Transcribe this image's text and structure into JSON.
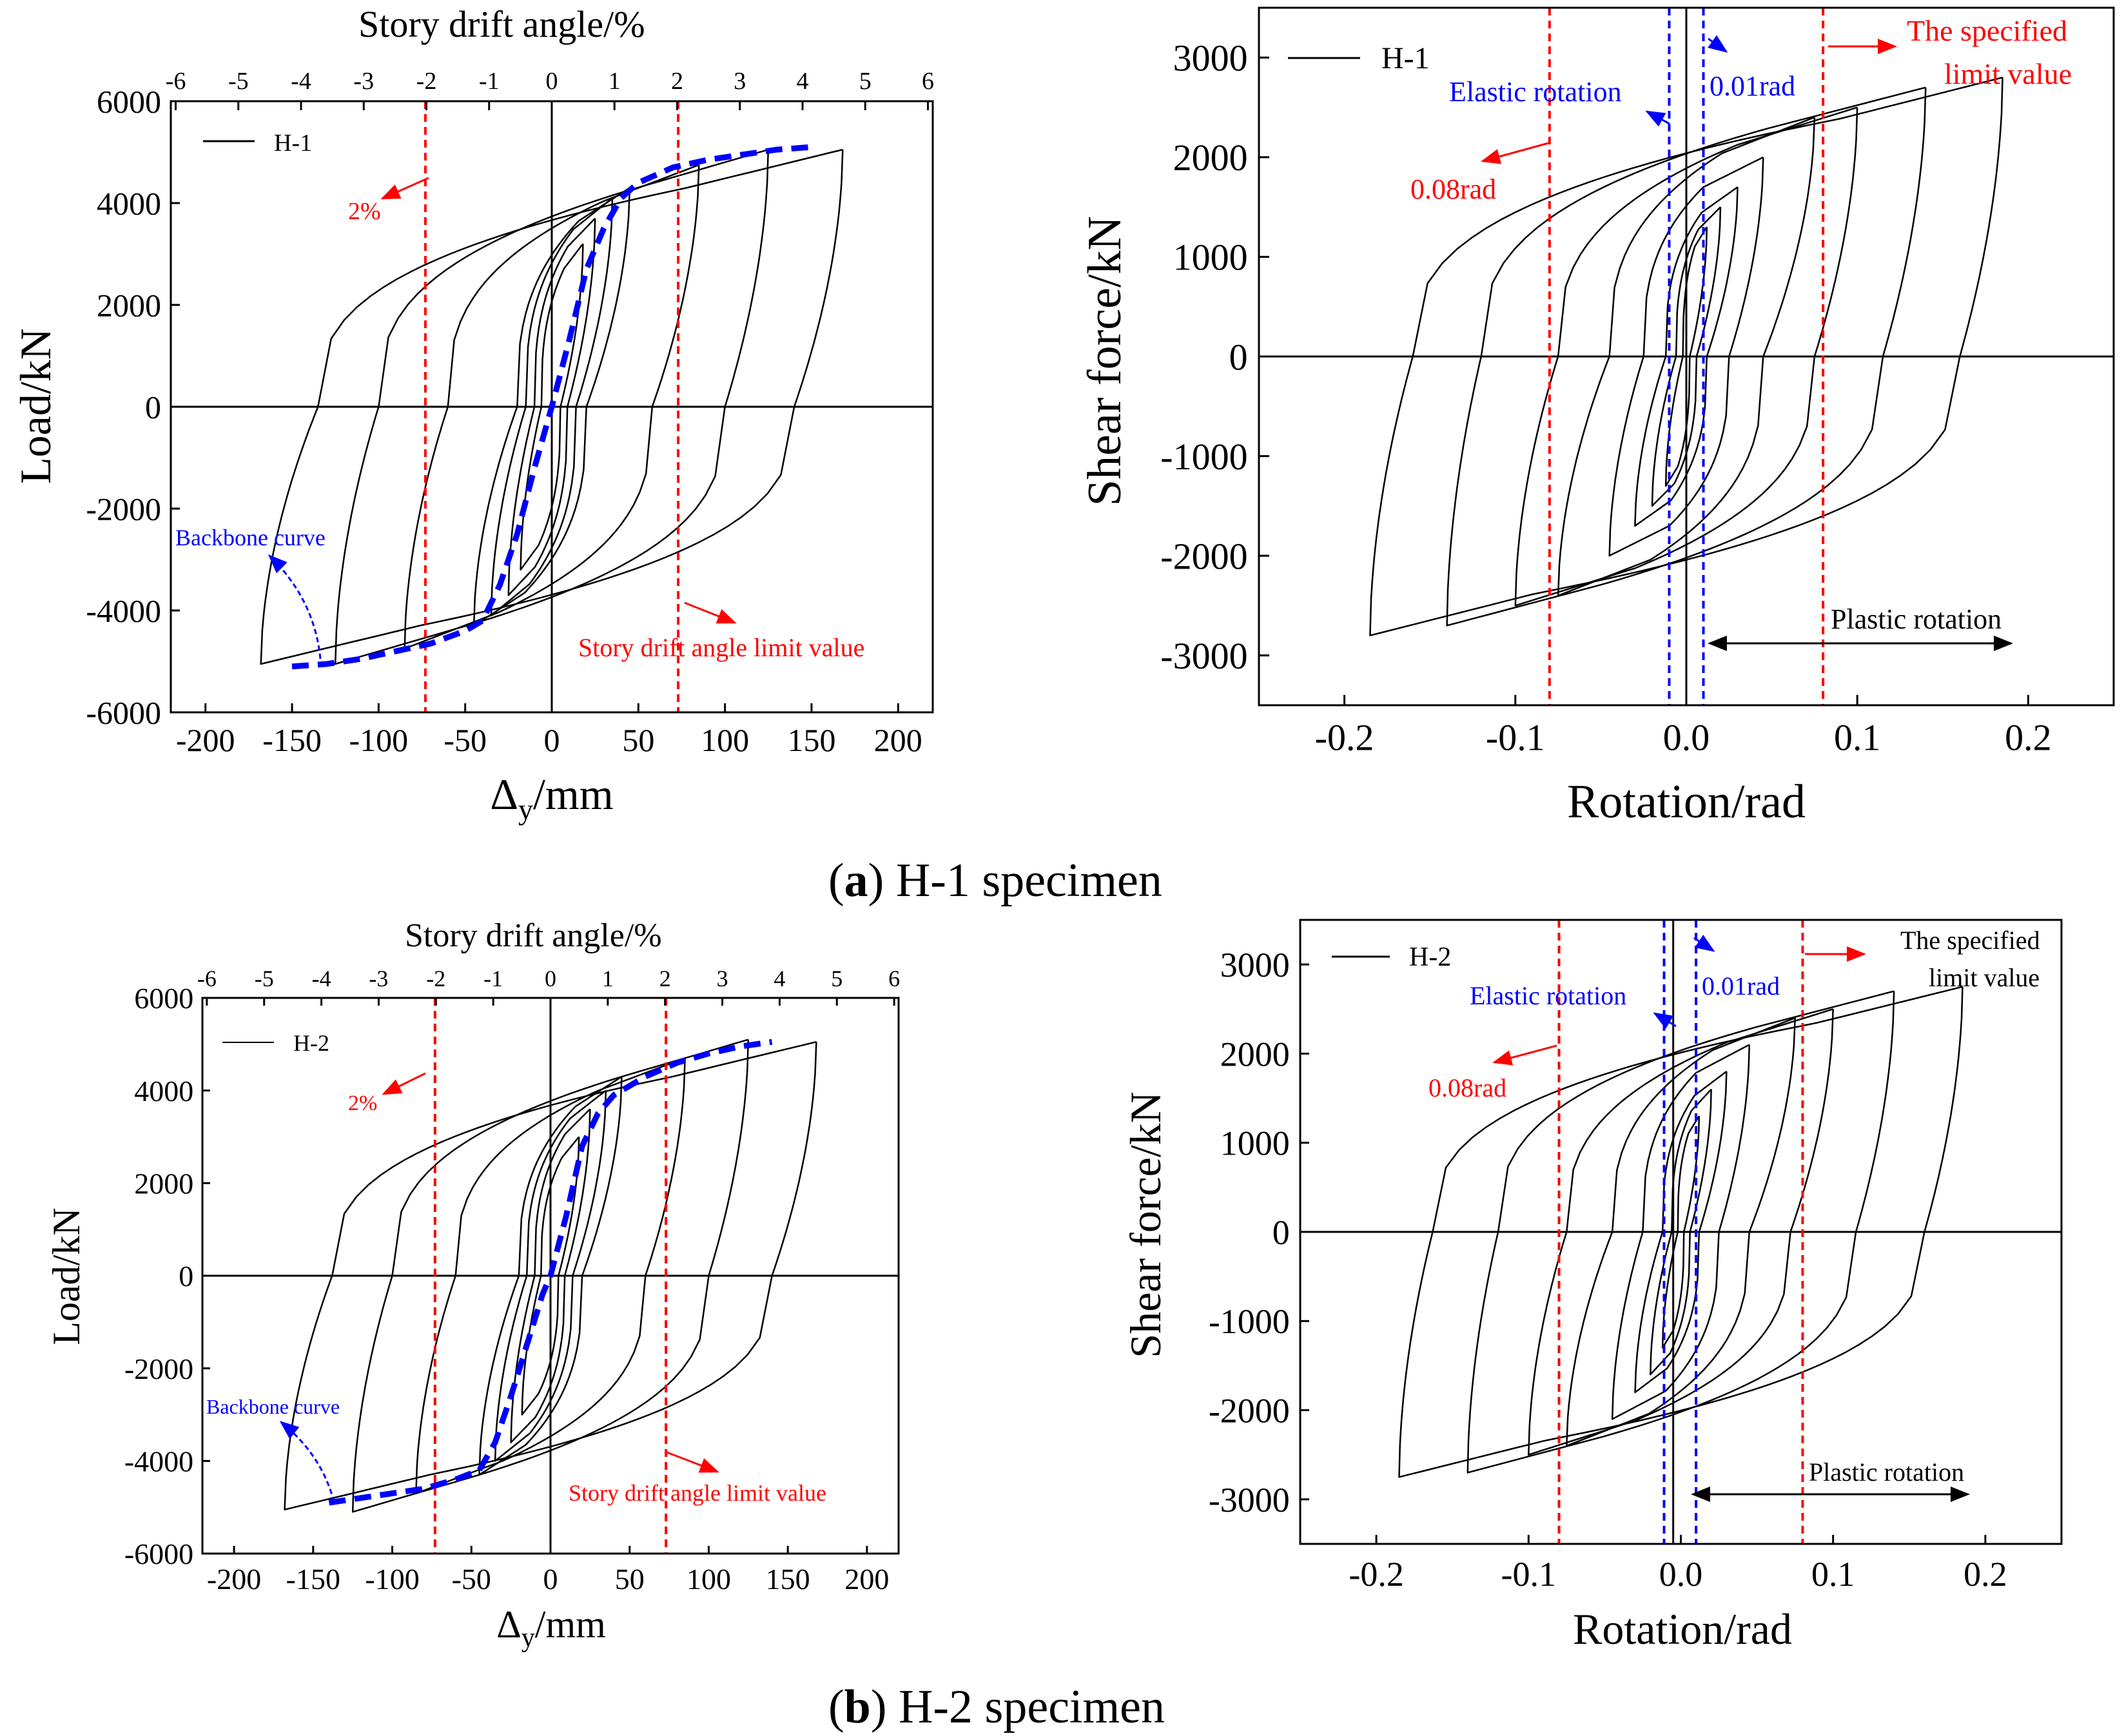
{
  "figure": {
    "caption_a": {
      "letter": "a",
      "text": " H-1 specimen"
    },
    "caption_b": {
      "letter": "b",
      "text": " H-2 specimen"
    }
  },
  "colors": {
    "axis": "#000000",
    "curve": "#000000",
    "limit_red": "#ff0000",
    "elastic_blue": "#0000ff",
    "backbone_blue": "#0000ff"
  },
  "chart_data": [
    {
      "id": "a-left",
      "type": "line",
      "specimen": "H-1",
      "title": "",
      "xlabel_main": "Δ",
      "xlabel_sub": "y",
      "xlabel_unit": "/mm",
      "ylabel": "Load/kN",
      "top_axis_label": "Story drift angle/%",
      "xlim": [
        -220,
        220
      ],
      "ylim": [
        -6000,
        6000
      ],
      "x_ticks": [
        -200,
        -150,
        -100,
        -50,
        0,
        50,
        100,
        150,
        200
      ],
      "y_ticks": [
        -6000,
        -4000,
        -2000,
        0,
        2000,
        4000,
        6000
      ],
      "top_ticks": [
        -6,
        -5,
        -4,
        -3,
        -2,
        -1,
        0,
        1,
        2,
        3,
        4,
        5,
        6
      ],
      "drift_mm_per_percent": 36.2,
      "legend": "H-1",
      "limit_lines_x": [
        -73,
        73
      ],
      "annotations": {
        "limit_note": "2%",
        "story_drift_note": "Story drift angle limit value",
        "backbone_note": "Backbone curve"
      },
      "loops": [
        {
          "amp": 18,
          "peak": 3200,
          "zero_pos": 5,
          "zero_neg": -6,
          "knee": 0.55
        },
        {
          "amp": 25,
          "peak": 3700,
          "zero_pos": 9,
          "zero_neg": -10,
          "knee": 0.55
        },
        {
          "amp": 35,
          "peak": 4100,
          "zero_pos": 14,
          "zero_neg": -15,
          "knee": 0.55
        },
        {
          "amp": 45,
          "peak": 4300,
          "zero_pos": 20,
          "zero_neg": -20,
          "knee": 0.55
        },
        {
          "amp": 85,
          "peak": 4750,
          "zero_pos": 58,
          "zero_neg": -60,
          "knee": 0.62
        },
        {
          "amp": 125,
          "peak": 5050,
          "zero_pos": 100,
          "zero_neg": -100,
          "knee": 0.66
        },
        {
          "amp": 168,
          "peak": 5050,
          "zero_pos": 140,
          "zero_neg": -135,
          "knee": 0.7
        }
      ],
      "backbone": {
        "x": [
          -150,
          -130,
          -110,
          -90,
          -70,
          -50,
          -40,
          -30,
          -20,
          -10,
          0,
          10,
          20,
          30,
          40,
          50,
          70,
          90,
          110,
          130,
          150
        ],
        "y": [
          -5100,
          -5050,
          -4950,
          -4800,
          -4650,
          -4400,
          -4200,
          -3500,
          -2500,
          -1200,
          0,
          1300,
          2700,
          3500,
          4100,
          4400,
          4700,
          4850,
          4950,
          5050,
          5100
        ]
      }
    },
    {
      "id": "a-right",
      "type": "line",
      "specimen": "H-1",
      "title": "",
      "xlabel": "Rotation/rad",
      "ylabel": "Shear force/kN",
      "xlim": [
        -0.25,
        0.25
      ],
      "ylim": [
        -3500,
        3500
      ],
      "x_ticks": [
        -0.2,
        -0.1,
        0.0,
        0.1,
        0.2
      ],
      "x_tick_labels": [
        "-0.2",
        "-0.1",
        "0.0",
        "0.1",
        "0.2"
      ],
      "y_ticks": [
        -3000,
        -2000,
        -1000,
        0,
        1000,
        2000,
        3000
      ],
      "legend": "H-1",
      "zero_line_x": 0.0,
      "red_lines_x": [
        -0.08,
        0.08
      ],
      "blue_lines_x": [
        -0.01,
        0.01
      ],
      "annotations": {
        "elastic_rotation": "Elastic rotation",
        "rad_001": "0.01rad",
        "rad_008": "0.08rad",
        "specified_limit_line1": "The specified",
        "specified_limit_line2": "limit value",
        "plastic_rotation": "Plastic rotation"
      },
      "loops": [
        {
          "amp": 0.012,
          "peak": 1300,
          "zero_pos": 0.002,
          "zero_neg": -0.002,
          "knee": 0.5
        },
        {
          "amp": 0.02,
          "peak": 1500,
          "zero_pos": 0.006,
          "zero_neg": -0.006,
          "knee": 0.5
        },
        {
          "amp": 0.03,
          "peak": 1700,
          "zero_pos": 0.012,
          "zero_neg": -0.012,
          "knee": 0.5
        },
        {
          "amp": 0.045,
          "peak": 2000,
          "zero_pos": 0.025,
          "zero_neg": -0.025,
          "knee": 0.5
        },
        {
          "amp": 0.075,
          "peak": 2400,
          "zero_pos": 0.045,
          "zero_neg": -0.045,
          "knee": 0.55
        },
        {
          "amp": 0.1,
          "peak": 2500,
          "zero_pos": 0.075,
          "zero_neg": -0.075,
          "knee": 0.6
        },
        {
          "amp": 0.14,
          "peak": 2700,
          "zero_pos": 0.115,
          "zero_neg": -0.12,
          "knee": 0.65
        },
        {
          "amp": 0.185,
          "peak": 2800,
          "zero_pos": 0.16,
          "zero_neg": -0.16,
          "knee": 0.72
        }
      ]
    },
    {
      "id": "b-left",
      "type": "line",
      "specimen": "H-2",
      "title": "",
      "xlabel_main": "Δ",
      "xlabel_sub": "y",
      "xlabel_unit": "/mm",
      "ylabel": "Load/kN",
      "top_axis_label": "Story drift angle/%",
      "xlim": [
        -220,
        220
      ],
      "ylim": [
        -6000,
        6000
      ],
      "x_ticks": [
        -200,
        -150,
        -100,
        -50,
        0,
        50,
        100,
        150,
        200
      ],
      "y_ticks": [
        -6000,
        -4000,
        -2000,
        0,
        2000,
        4000,
        6000
      ],
      "top_ticks": [
        -6,
        -5,
        -4,
        -3,
        -2,
        -1,
        0,
        1,
        2,
        3,
        4,
        5,
        6
      ],
      "drift_mm_per_percent": 36.2,
      "legend": "H-2",
      "limit_lines_x": [
        -73,
        73
      ],
      "annotations": {
        "limit_note": "2%",
        "story_drift_note": "Story drift angle limit value",
        "backbone_note": "Backbone curve"
      },
      "loops": [
        {
          "amp": 18,
          "peak": 3000,
          "zero_pos": 5,
          "zero_neg": -6,
          "knee": 0.55
        },
        {
          "amp": 25,
          "peak": 3600,
          "zero_pos": 9,
          "zero_neg": -10,
          "knee": 0.55
        },
        {
          "amp": 35,
          "peak": 4000,
          "zero_pos": 14,
          "zero_neg": -15,
          "knee": 0.55
        },
        {
          "amp": 45,
          "peak": 4300,
          "zero_pos": 20,
          "zero_neg": -20,
          "knee": 0.55
        },
        {
          "amp": 85,
          "peak": 4700,
          "zero_pos": 60,
          "zero_neg": -60,
          "knee": 0.62
        },
        {
          "amp": 125,
          "peak": 5100,
          "zero_pos": 100,
          "zero_neg": -100,
          "knee": 0.66
        },
        {
          "amp": 168,
          "peak": 5050,
          "zero_pos": 140,
          "zero_neg": -138,
          "knee": 0.7
        }
      ],
      "backbone": {
        "x": [
          -140,
          -120,
          -100,
          -80,
          -60,
          -45,
          -35,
          -25,
          -15,
          -5,
          0,
          10,
          20,
          30,
          40,
          60,
          80,
          100,
          120,
          140
        ],
        "y": [
          -4900,
          -4800,
          -4700,
          -4600,
          -4400,
          -4200,
          -3600,
          -2600,
          -1500,
          -400,
          0,
          1300,
          2800,
          3500,
          3900,
          4300,
          4600,
          4800,
          4950,
          5050
        ]
      }
    },
    {
      "id": "b-right",
      "type": "line",
      "specimen": "H-2",
      "title": "",
      "xlabel": "Rotation/rad",
      "ylabel": "Shear force/kN",
      "xlim": [
        -0.25,
        0.25
      ],
      "ylim": [
        -3500,
        3500
      ],
      "x_ticks": [
        -0.2,
        -0.1,
        0.0,
        0.1,
        0.2
      ],
      "x_tick_labels": [
        "-0.2",
        "-0.1",
        "0.0",
        "0.1",
        "0.2"
      ],
      "y_ticks": [
        -3000,
        -2000,
        -1000,
        0,
        1000,
        2000,
        3000
      ],
      "legend": "H-2",
      "zero_line_x": -0.005,
      "red_lines_x": [
        -0.08,
        0.08
      ],
      "blue_lines_x": [
        -0.011,
        0.01
      ],
      "annotations": {
        "elastic_rotation": "Elastic rotation",
        "rad_001": "0.01rad",
        "rad_008": "0.08rad",
        "specified_limit_line1": "The specified",
        "specified_limit_line2": "limit value",
        "plastic_rotation": "Plastic rotation"
      },
      "loops": [
        {
          "amp": 0.012,
          "peak": 1300,
          "zero_pos": 0.002,
          "zero_neg": -0.002,
          "knee": 0.5
        },
        {
          "amp": 0.02,
          "peak": 1600,
          "zero_pos": 0.006,
          "zero_neg": -0.006,
          "knee": 0.5
        },
        {
          "amp": 0.03,
          "peak": 1800,
          "zero_pos": 0.012,
          "zero_neg": -0.012,
          "knee": 0.5
        },
        {
          "amp": 0.045,
          "peak": 2100,
          "zero_pos": 0.025,
          "zero_neg": -0.025,
          "knee": 0.5
        },
        {
          "amp": 0.075,
          "peak": 2400,
          "zero_pos": 0.045,
          "zero_neg": -0.045,
          "knee": 0.55
        },
        {
          "amp": 0.1,
          "peak": 2500,
          "zero_pos": 0.072,
          "zero_neg": -0.075,
          "knee": 0.6
        },
        {
          "amp": 0.14,
          "peak": 2700,
          "zero_pos": 0.115,
          "zero_neg": -0.12,
          "knee": 0.65
        },
        {
          "amp": 0.185,
          "peak": 2750,
          "zero_pos": 0.16,
          "zero_neg": -0.163,
          "knee": 0.72
        }
      ]
    }
  ]
}
